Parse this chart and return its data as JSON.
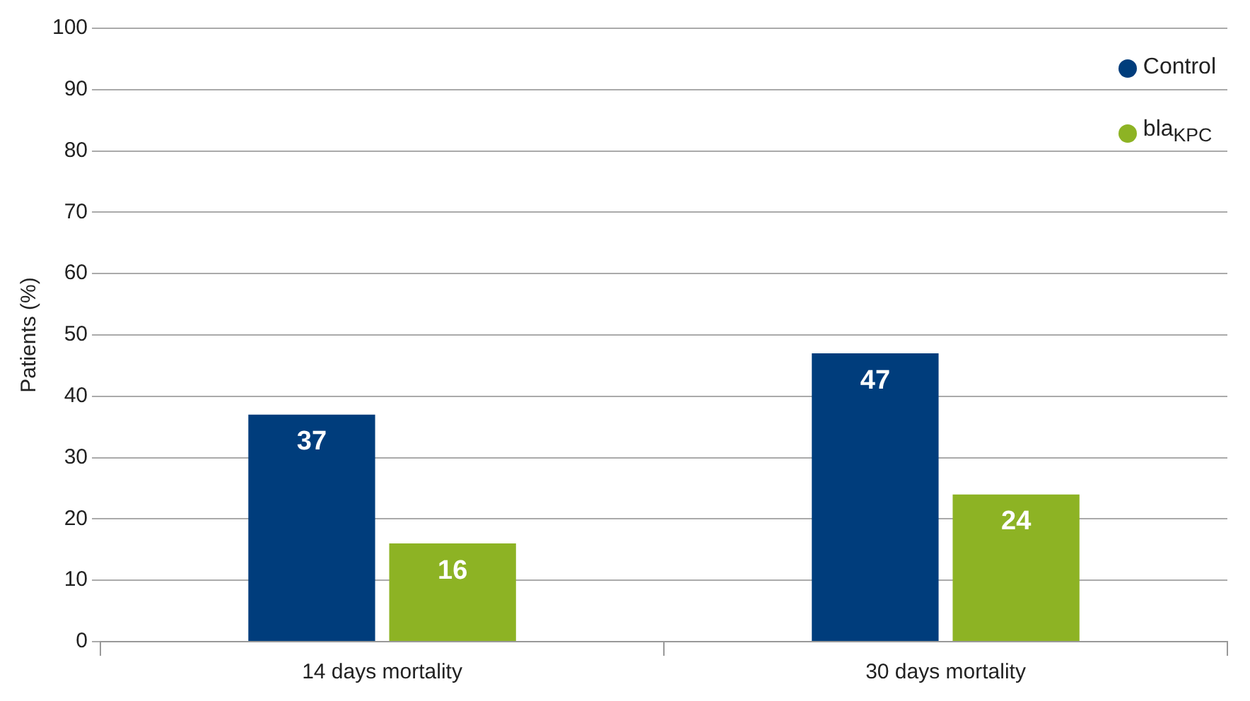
{
  "chart_data": {
    "type": "bar",
    "ylabel": "Patients (%)",
    "categories": [
      "14 days mortality",
      "30 days mortality"
    ],
    "series": [
      {
        "name": "Control",
        "color": "#003d7c",
        "values": [
          37,
          47
        ]
      },
      {
        "name": "bla$_{KPC}$",
        "color": "#8db324",
        "values": [
          16,
          24
        ]
      }
    ],
    "ylim": [
      0,
      100
    ],
    "yticks": [
      0,
      10,
      20,
      30,
      40,
      50,
      60,
      70,
      80,
      90,
      100
    ],
    "grid": "y",
    "legend": "top right",
    "data_labels": true
  }
}
